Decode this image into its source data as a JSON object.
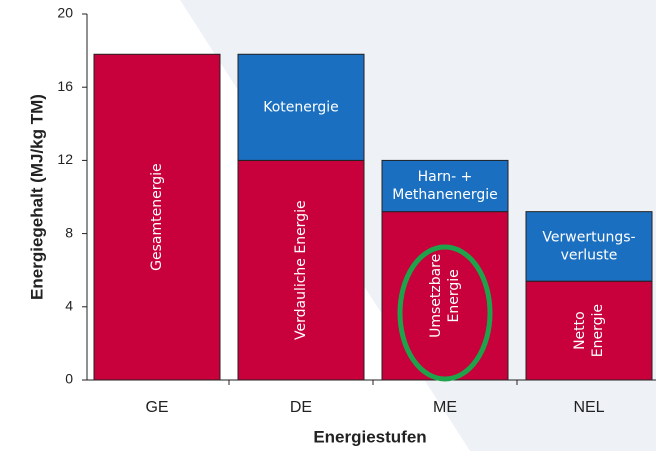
{
  "chart_data": {
    "type": "stacked_bar",
    "xlabel": "Energiestufen",
    "ylabel": "Energiegehalt (MJ/kg TM)",
    "categories": [
      "GE",
      "DE",
      "ME",
      "NEL"
    ],
    "series": [
      {
        "color": "#c8003c",
        "values": [
          17.8,
          12.0,
          9.2,
          5.4
        ],
        "labels": [
          [
            "Gesamtenergie"
          ],
          [
            "Verdauliche Energie"
          ],
          [
            "Umsetzbare",
            "Energie"
          ],
          [
            "Netto",
            "Energie"
          ]
        ]
      },
      {
        "color": "#1a6fc0",
        "values": [
          null,
          5.8,
          2.8,
          3.8
        ],
        "labels": [
          null,
          [
            "Kotenergie"
          ],
          [
            "Harn- +",
            "Methanenergie"
          ],
          [
            "Verwertungs-",
            "verluste"
          ]
        ]
      }
    ],
    "ylim": [
      0,
      20
    ],
    "yticks": [
      0,
      4,
      8,
      12,
      16,
      20
    ]
  }
}
